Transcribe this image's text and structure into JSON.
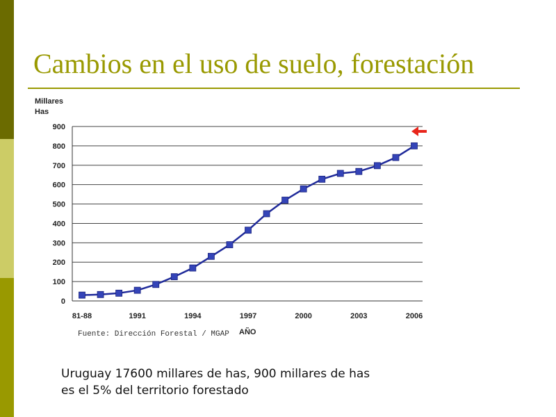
{
  "slide": {
    "title": "Cambios en el uso de suelo, forestación",
    "caption_line1": "Uruguay 17600 millares de has, 900 millares de has",
    "caption_line2": "es el 5% del territorio forestado"
  },
  "colors": {
    "accent": "#999900",
    "line": "#1f2a9a",
    "marker": "#3444b8",
    "arrow": "#e8251b"
  },
  "chart_data": {
    "type": "line",
    "ylabel": "Millares\nHas",
    "xlabel": "AÑO",
    "source": "Fuente: Dirección Forestal / MGAP",
    "ylim": [
      0,
      900
    ],
    "yticks": [
      0,
      100,
      200,
      300,
      400,
      500,
      600,
      700,
      800,
      900
    ],
    "xtick_labels": [
      "81-88",
      "1991",
      "1994",
      "1997",
      "2000",
      "2003",
      "2006"
    ],
    "xtick_indices": [
      0,
      3,
      6,
      9,
      12,
      15,
      18
    ],
    "grid": true,
    "series": [
      {
        "name": "Millares Has",
        "x": [
          "81-88",
          "1989",
          "1990",
          "1991",
          "1992",
          "1993",
          "1994",
          "1995",
          "1996",
          "1997",
          "1998",
          "1999",
          "2000",
          "2001",
          "2002",
          "2003",
          "2004",
          "2005",
          "2006"
        ],
        "values": [
          30,
          33,
          40,
          55,
          85,
          125,
          170,
          230,
          290,
          365,
          450,
          520,
          578,
          628,
          658,
          668,
          698,
          740,
          800
        ]
      }
    ],
    "annotation": "arrow pointing at 900"
  }
}
